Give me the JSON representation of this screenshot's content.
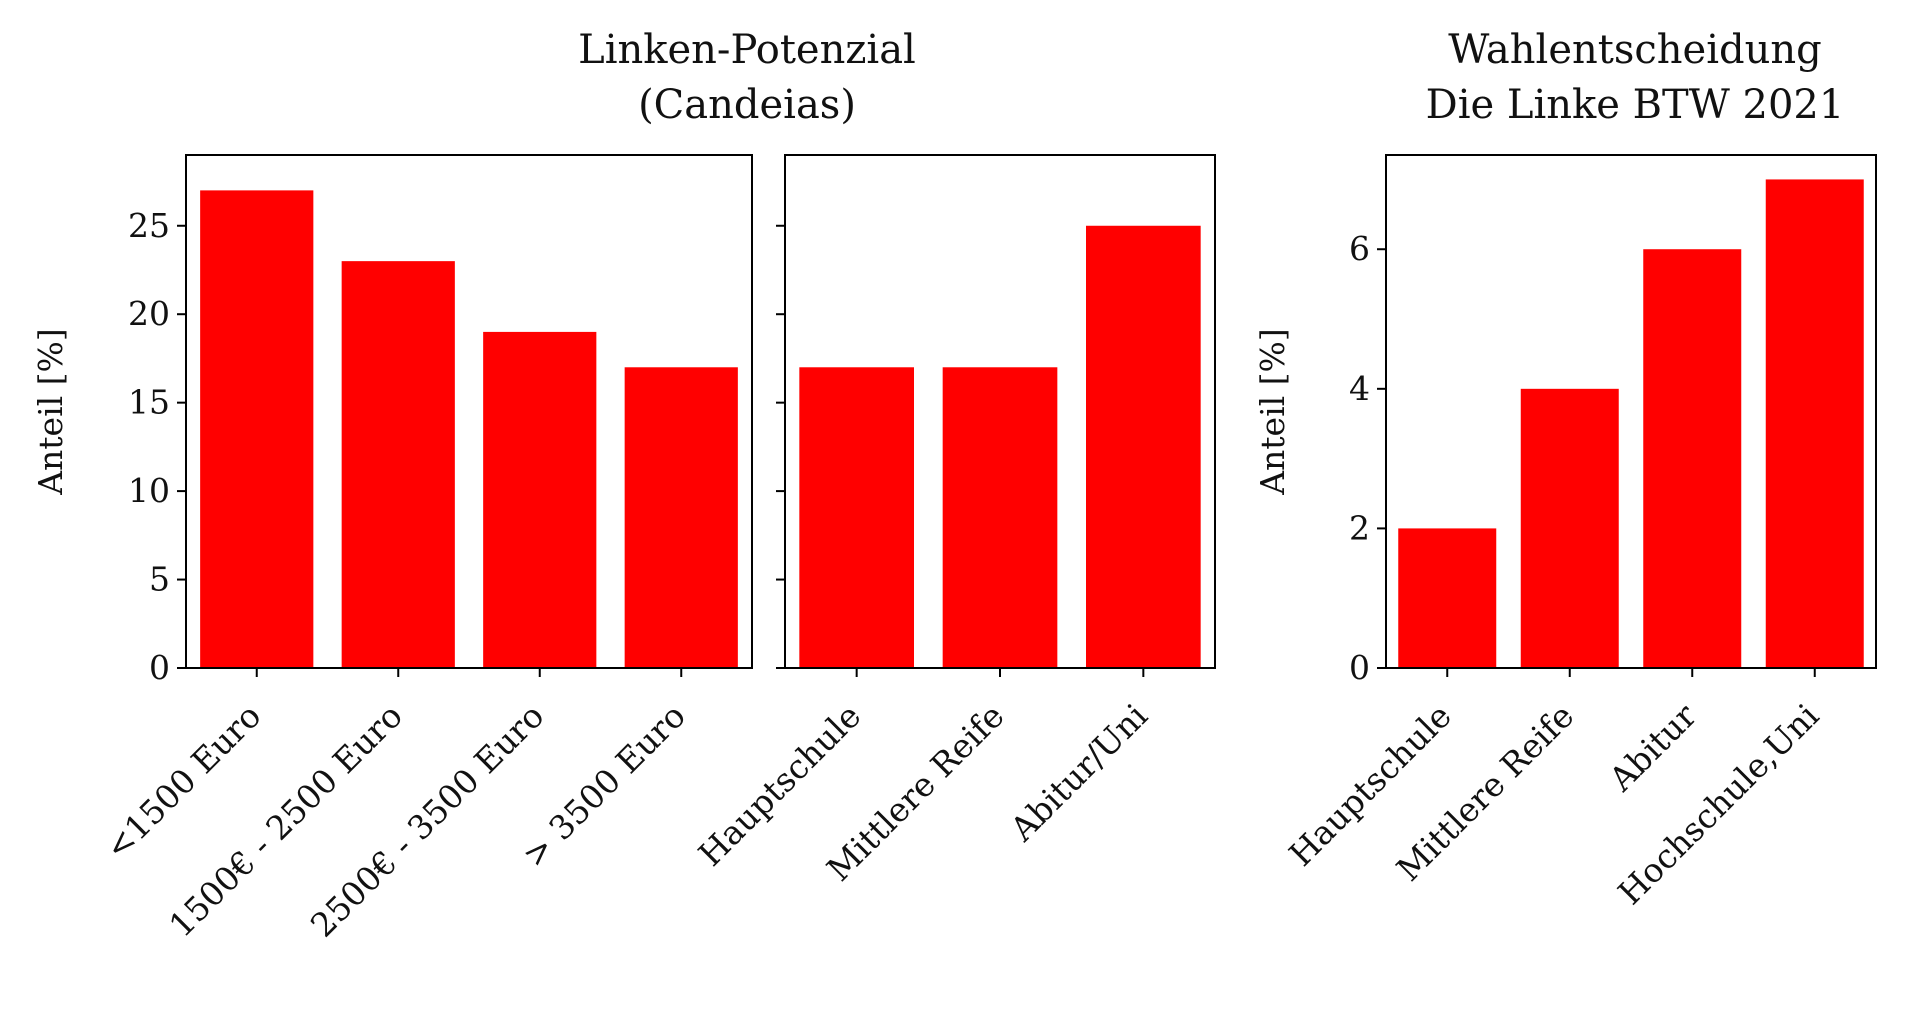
{
  "chart_data": [
    {
      "type": "bar",
      "title": "",
      "categories": [
        "<1500 Euro",
        "1500€ - 2500 Euro",
        "2500€ - 3500 Euro",
        "> 3500 Euro"
      ],
      "values": [
        27,
        23,
        19,
        17
      ],
      "xlabel": "",
      "ylabel": "Anteil [%]",
      "ylim": [
        0,
        29
      ],
      "yticks": [
        0,
        5,
        10,
        15,
        20,
        25
      ],
      "grid": false,
      "color": "#ff0000"
    },
    {
      "type": "bar",
      "title": "",
      "categories": [
        "Hauptschule",
        "Mittlere Reife",
        "Abitur/Uni"
      ],
      "values": [
        17,
        17,
        25
      ],
      "xlabel": "",
      "ylabel": "",
      "ylim": [
        0,
        29
      ],
      "yticks": [
        0,
        5,
        10,
        15,
        20,
        25
      ],
      "grid": false,
      "color": "#ff0000"
    },
    {
      "type": "bar",
      "title": "",
      "categories": [
        "Hauptschule",
        "Mittlere Reife",
        "Abitur",
        "Hochschule,Uni"
      ],
      "values": [
        2,
        4,
        6,
        7
      ],
      "xlabel": "",
      "ylabel": "Anteil [%]",
      "ylim": [
        0,
        7.35
      ],
      "yticks": [
        0,
        2,
        4,
        6
      ],
      "grid": false,
      "color": "#ff0000"
    }
  ],
  "titles": {
    "group_left_line1": "Linken-Potenzial",
    "group_left_line2": "(Candeias)",
    "right_line1": "Wahlentscheidung",
    "right_line2": "Die Linke BTW 2021"
  }
}
